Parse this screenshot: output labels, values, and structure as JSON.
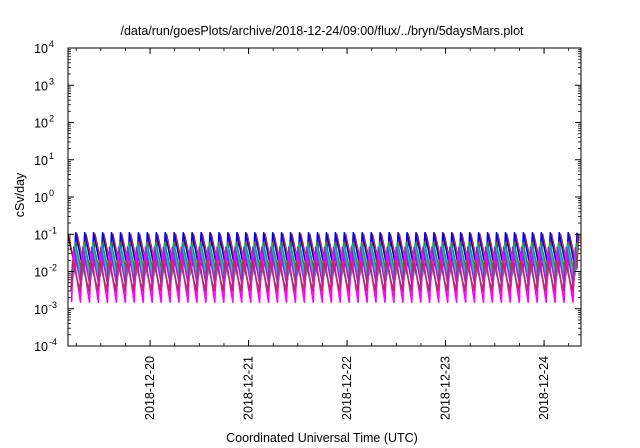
{
  "chart_data": {
    "type": "line",
    "title": "/data/run/goesPlots/archive/2018-12-24/09:00/flux/../bryn/5daysMars.plot",
    "xlabel": "Coordinated Universal Time (UTC)",
    "ylabel": "cSv/day",
    "yscale": "log",
    "ylim": [
      0.0001,
      10000
    ],
    "y_ticks": [
      {
        "base": "10",
        "exp": "4",
        "value": 10000
      },
      {
        "base": "10",
        "exp": "3",
        "value": 1000
      },
      {
        "base": "10",
        "exp": "2",
        "value": 100
      },
      {
        "base": "10",
        "exp": "1",
        "value": 10
      },
      {
        "base": "10",
        "exp": "0",
        "value": 1
      },
      {
        "base": "10",
        "exp": "-1",
        "value": 0.1
      },
      {
        "base": "10",
        "exp": "-2",
        "value": 0.01
      },
      {
        "base": "10",
        "exp": "-3",
        "value": 0.001
      },
      {
        "base": "10",
        "exp": "-4",
        "value": 0.0001
      }
    ],
    "xlim": [
      "2018-12-19T04:00",
      "2018-12-24T09:00"
    ],
    "x_ticks": [
      "2018-12-20",
      "2018-12-21",
      "2018-12-22",
      "2018-12-23",
      "2018-12-24"
    ],
    "grid": false,
    "legend": "none",
    "pattern": {
      "description": "sawtooth with roughly 11 cycles per day",
      "cycles_per_day": 11,
      "start": "2018-12-19T04:00",
      "end": "2018-12-24T09:00"
    },
    "series": [
      {
        "color": "#8b0000",
        "peak": 0.1,
        "trough": 0.012
      },
      {
        "color": "#ff7f00",
        "peak": 0.1,
        "trough": 0.012
      },
      {
        "color": "#0000ff",
        "peak": 0.11,
        "trough": 0.011
      },
      {
        "color": "#2e8b57",
        "peak": 0.06,
        "trough": 0.008
      },
      {
        "color": "#00cccc",
        "peak": 0.05,
        "trough": 0.006
      },
      {
        "color": "#8a2be2",
        "peak": 0.045,
        "trough": 0.004
      },
      {
        "color": "#ff00ff",
        "peak": 0.03,
        "trough": 0.0015
      },
      {
        "color": "#b03060",
        "peak": 0.02,
        "trough": 0.003
      }
    ]
  }
}
